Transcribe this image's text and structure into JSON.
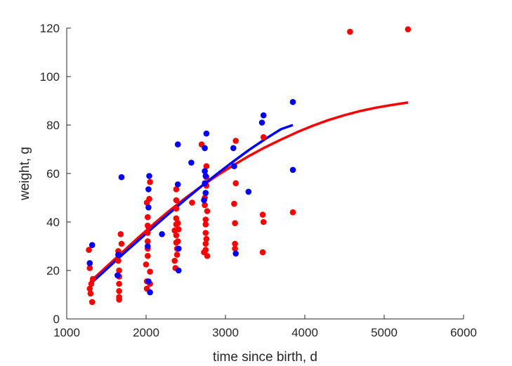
{
  "chart_data": {
    "type": "scatter",
    "xlabel": "time since birth, d",
    "ylabel": "weight, g",
    "xlim": [
      1000,
      6000
    ],
    "ylim": [
      0,
      120
    ],
    "xticks": [
      1000,
      2000,
      3000,
      4000,
      5000,
      6000
    ],
    "yticks": [
      0,
      20,
      40,
      60,
      80,
      100,
      120
    ],
    "grid": false,
    "colors": {
      "red": "#ff0000",
      "blue": "#0000ff",
      "axis": "#262626"
    },
    "series": [
      {
        "color": "#ff0000",
        "kind": "points",
        "points": [
          [
            1280,
            28.5
          ],
          [
            1290,
            21
          ],
          [
            1290,
            12.5
          ],
          [
            1300,
            10.5
          ],
          [
            1310,
            14.5
          ],
          [
            1320,
            7
          ],
          [
            1330,
            16.5
          ],
          [
            1650,
            28
          ],
          [
            1650,
            24
          ],
          [
            1660,
            20
          ],
          [
            1660,
            17.5
          ],
          [
            1660,
            14.5
          ],
          [
            1660,
            11.5
          ],
          [
            1660,
            9
          ],
          [
            1660,
            8
          ],
          [
            1680,
            35
          ],
          [
            1690,
            31
          ],
          [
            2000,
            22.5
          ],
          [
            2010,
            48
          ],
          [
            2010,
            15.5
          ],
          [
            2010,
            12.5
          ],
          [
            2020,
            42
          ],
          [
            2020,
            38.5
          ],
          [
            2020,
            35.5
          ],
          [
            2020,
            32
          ],
          [
            2020,
            29
          ],
          [
            2020,
            26
          ],
          [
            2030,
            38
          ],
          [
            2040,
            49.5
          ],
          [
            2050,
            56.5
          ],
          [
            2050,
            19.5
          ],
          [
            2050,
            14.5
          ],
          [
            2360,
            36.5
          ],
          [
            2360,
            24
          ],
          [
            2370,
            21
          ],
          [
            2380,
            53.5
          ],
          [
            2380,
            49
          ],
          [
            2380,
            45.5
          ],
          [
            2380,
            41.5
          ],
          [
            2380,
            39
          ],
          [
            2380,
            34.5
          ],
          [
            2380,
            31.5
          ],
          [
            2390,
            29
          ],
          [
            2390,
            26.5
          ],
          [
            2400,
            39.5
          ],
          [
            2400,
            32
          ],
          [
            2410,
            37
          ],
          [
            2580,
            48
          ],
          [
            2700,
            72
          ],
          [
            2730,
            27.5
          ],
          [
            2740,
            50
          ],
          [
            2740,
            47
          ],
          [
            2750,
            41
          ],
          [
            2750,
            39
          ],
          [
            2750,
            35.5
          ],
          [
            2750,
            31
          ],
          [
            2750,
            28.5
          ],
          [
            2760,
            63
          ],
          [
            2760,
            58.5
          ],
          [
            2760,
            55
          ],
          [
            2760,
            33
          ],
          [
            2770,
            44.5
          ],
          [
            2770,
            26
          ],
          [
            3110,
            47.5
          ],
          [
            3120,
            39.5
          ],
          [
            3120,
            31
          ],
          [
            3120,
            29
          ],
          [
            3130,
            73.5
          ],
          [
            3130,
            56
          ],
          [
            3470,
            43
          ],
          [
            3470,
            27.5
          ],
          [
            3480,
            75
          ],
          [
            3480,
            40
          ],
          [
            3850,
            44
          ],
          [
            4570,
            118.5
          ],
          [
            5300,
            119.5
          ]
        ]
      },
      {
        "color": "#0000ff",
        "kind": "points",
        "points": [
          [
            1290,
            23
          ],
          [
            1320,
            30.5
          ],
          [
            1640,
            18
          ],
          [
            1650,
            26.5
          ],
          [
            1690,
            58.5
          ],
          [
            2020,
            30
          ],
          [
            2030,
            15.5
          ],
          [
            2030,
            46
          ],
          [
            2030,
            53.5
          ],
          [
            2040,
            59
          ],
          [
            2050,
            11
          ],
          [
            2200,
            35
          ],
          [
            2400,
            72
          ],
          [
            2400,
            55.5
          ],
          [
            2410,
            29
          ],
          [
            2410,
            20
          ],
          [
            2570,
            64.5
          ],
          [
            2730,
            49
          ],
          [
            2740,
            70.5
          ],
          [
            2740,
            61
          ],
          [
            2740,
            56
          ],
          [
            2750,
            52
          ],
          [
            2750,
            59
          ],
          [
            2760,
            76.5
          ],
          [
            3100,
            70.5
          ],
          [
            3110,
            63
          ],
          [
            3130,
            27
          ],
          [
            3290,
            52.5
          ],
          [
            3460,
            81
          ],
          [
            3480,
            84
          ],
          [
            3850,
            89.5
          ],
          [
            3850,
            61.5
          ]
        ]
      },
      {
        "color": "#ff0000",
        "kind": "fit",
        "x": [
          1300,
          1500,
          1700,
          1900,
          2100,
          2300,
          2500,
          2700,
          2900,
          3100,
          3300,
          3500,
          3700,
          3900,
          4100,
          4300,
          4500,
          4700,
          4900,
          5100,
          5300
        ],
        "values": [
          15.5,
          21.5,
          27.5,
          33.5,
          39.3,
          44.8,
          50,
          54.8,
          59.3,
          63.4,
          67.3,
          70.8,
          74,
          77,
          79.7,
          82.1,
          84.1,
          85.8,
          87.2,
          88.3,
          89.3
        ]
      },
      {
        "color": "#0000ff",
        "kind": "fit",
        "x": [
          1300,
          1500,
          1700,
          1900,
          2100,
          2300,
          2500,
          2700,
          2900,
          3100,
          3300,
          3500,
          3700,
          3850
        ],
        "values": [
          14.5,
          20.5,
          26.5,
          32.3,
          38.1,
          43.8,
          49.4,
          54.8,
          60,
          65,
          69.8,
          74.2,
          78.3,
          80
        ]
      }
    ]
  }
}
